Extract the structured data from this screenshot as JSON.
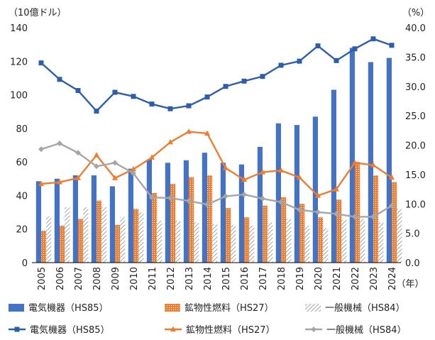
{
  "chart_data": {
    "type": "bar+line",
    "left_axis_label": "（10億ドル）",
    "right_axis_label": "（%）",
    "x_unit_label": "（年）",
    "categories": [
      "2005",
      "2006",
      "2007",
      "2008",
      "2009",
      "2010",
      "2011",
      "2012",
      "2013",
      "2014",
      "2015",
      "2016",
      "2017",
      "2018",
      "2019",
      "2020",
      "2021",
      "2022",
      "2023",
      "2024"
    ],
    "left_ylim": [
      0,
      140
    ],
    "left_ticks": [
      "0",
      "20",
      "40",
      "60",
      "80",
      "100",
      "120",
      "140"
    ],
    "right_ylim": [
      0,
      40
    ],
    "right_ticks": [
      "0.0",
      "5.0",
      "10.0",
      "15.0",
      "20.0",
      "25.0",
      "30.0",
      "35.0",
      "40.0"
    ],
    "bar_series": [
      {
        "name": "電気機器（HS85）",
        "color": "#4472c4",
        "pattern": "solid",
        "values": [
          48.5,
          50,
          52,
          52,
          45.5,
          56,
          61.5,
          59.5,
          61,
          65.5,
          59.5,
          58.5,
          69,
          83,
          82,
          87,
          103,
          128,
          119.5,
          122
        ]
      },
      {
        "name": "鉱物性燃料（HS27）",
        "color": "#ed7d31",
        "pattern": "dots",
        "values": [
          19,
          22,
          26,
          37,
          22.5,
          32,
          41.5,
          47,
          51,
          52,
          32.5,
          27,
          34,
          39,
          35,
          27,
          37.5,
          60,
          52,
          48
        ]
      },
      {
        "name": "一般機械（HS84）",
        "color": "#a6a6a6",
        "pattern": "diagonal",
        "values": [
          27.5,
          33,
          33,
          33,
          27,
          30,
          25,
          25,
          24,
          23,
          22.5,
          22,
          24,
          26,
          22,
          20.5,
          25.5,
          26,
          24,
          32
        ]
      }
    ],
    "line_series": [
      {
        "name": "電気機器（HS85）",
        "color": "#2e5ea8",
        "marker": "square",
        "values": [
          34.0,
          31.2,
          29.3,
          25.8,
          29.0,
          28.3,
          27.0,
          26.2,
          26.7,
          28.2,
          30.0,
          30.9,
          31.7,
          33.6,
          34.3,
          36.9,
          34.4,
          36.4,
          38.1,
          37.0
        ]
      },
      {
        "name": "鉱物性燃料（HS27）",
        "color": "#ed7d31",
        "marker": "triangle",
        "values": [
          13.4,
          13.7,
          14.4,
          18.3,
          14.4,
          15.9,
          17.9,
          20.5,
          22.3,
          22.0,
          16.1,
          14.1,
          15.4,
          15.7,
          14.5,
          11.4,
          12.5,
          17.0,
          16.6,
          14.5
        ]
      },
      {
        "name": "一般機械（HS84）",
        "color": "#a6a6a6",
        "marker": "diamond",
        "values": [
          19.3,
          20.3,
          18.7,
          16.4,
          17.0,
          15.2,
          11.1,
          11.0,
          10.5,
          9.9,
          11.3,
          11.6,
          10.9,
          10.3,
          9.0,
          8.6,
          8.3,
          7.8,
          7.8,
          9.7
        ]
      }
    ],
    "legend_position": "bottom"
  }
}
